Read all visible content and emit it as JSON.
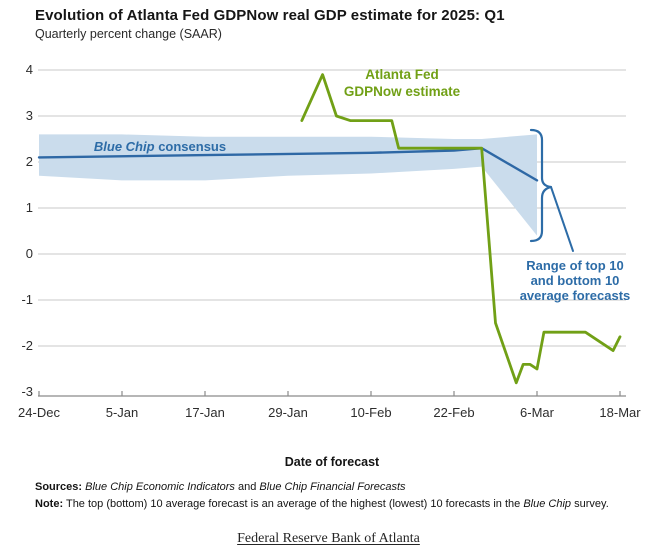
{
  "chart_data": {
    "type": "line",
    "title": "Evolution of Atlanta Fed GDPNow real GDP estimate for 2025: Q1",
    "subtitle": "Quarterly percent change (SAAR)",
    "xlabel": "Date of forecast",
    "ylabel": "Quarterly percent change (SAAR)",
    "ylim": [
      -3,
      4
    ],
    "grid": "horizontal",
    "y_ticks": [
      4,
      3,
      2,
      1,
      0,
      -1,
      -2,
      -3
    ],
    "x_ticklabels": [
      "24-Dec",
      "5-Jan",
      "17-Jan",
      "29-Jan",
      "10-Feb",
      "22-Feb",
      "6-Mar",
      "18-Mar"
    ],
    "series": [
      {
        "name": "Atlanta Fed GDPNow estimate",
        "color": "#71a016",
        "points": [
          [
            "31-Jan",
            2.9
          ],
          [
            "3-Feb",
            3.9
          ],
          [
            "5-Feb",
            3.0
          ],
          [
            "7-Feb",
            2.9
          ],
          [
            "13-Feb",
            2.9
          ],
          [
            "14-Feb",
            2.3
          ],
          [
            "26-Feb",
            2.3
          ],
          [
            "28-Feb",
            -1.5
          ],
          [
            "3-Mar",
            -2.8
          ],
          [
            "4-Mar",
            -2.4
          ],
          [
            "5-Mar",
            -2.4
          ],
          [
            "6-Mar",
            -2.5
          ],
          [
            "7-Mar",
            -1.7
          ],
          [
            "13-Mar",
            -1.7
          ],
          [
            "17-Mar",
            -2.1
          ],
          [
            "18-Mar",
            -1.8
          ]
        ]
      },
      {
        "name": "Blue Chip consensus",
        "color": "#2e68a5",
        "points": [
          [
            "24-Dec",
            2.1
          ],
          [
            "17-Jan",
            2.15
          ],
          [
            "10-Feb",
            2.2
          ],
          [
            "22-Feb",
            2.25
          ],
          [
            "26-Feb",
            2.3
          ],
          [
            "6-Mar",
            1.6
          ]
        ]
      }
    ],
    "band": {
      "name": "Range of top 10 and bottom 10 average forecasts",
      "color": "#cadcec",
      "points": [
        {
          "x": "24-Dec",
          "top": 2.6,
          "bottom": 1.7
        },
        {
          "x": "5-Jan",
          "top": 2.6,
          "bottom": 1.6
        },
        {
          "x": "17-Jan",
          "top": 2.55,
          "bottom": 1.6
        },
        {
          "x": "29-Jan",
          "top": 2.55,
          "bottom": 1.7
        },
        {
          "x": "10-Feb",
          "top": 2.55,
          "bottom": 1.75
        },
        {
          "x": "22-Feb",
          "top": 2.5,
          "bottom": 1.85
        },
        {
          "x": "26-Feb",
          "top": 2.5,
          "bottom": 1.9
        },
        {
          "x": "6-Mar",
          "top": 2.6,
          "bottom": 0.4
        }
      ]
    },
    "annotations": {
      "gdpnow": {
        "line1": "Atlanta Fed",
        "line2": "GDPNow estimate"
      },
      "bluechip": {
        "italic": "Blue Chip",
        "rest": "consensus"
      },
      "range": {
        "line1": "Range of top 10",
        "line2": "and bottom 10",
        "line3": "average forecasts"
      }
    },
    "colors": {
      "gdpnow_green": "#71a016",
      "bluechip_blue": "#2e68a5",
      "band_light_blue": "#cadcec",
      "annotation_blue": "#2d6ca7",
      "gridline_gray": "#cacaca"
    }
  },
  "footer": {
    "sources_label": "Sources:",
    "source1": "Blue Chip Economic Indicators",
    "and_word": "and",
    "source2": "Blue Chip Financial Forecasts",
    "note_label": "Note:",
    "note_part1": "The top (bottom) 10 average forecast is an average of the highest (lowest) 10 forecasts in the",
    "note_italic": "Blue Chip",
    "note_part2": "survey.",
    "link_text": "Federal Reserve Bank of Atlanta"
  }
}
